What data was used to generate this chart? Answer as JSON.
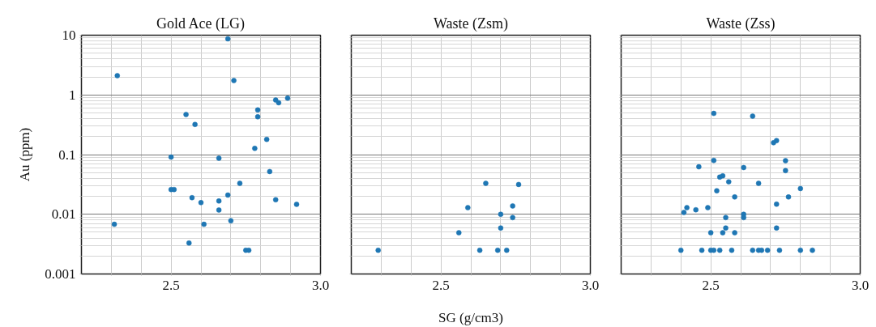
{
  "chart_data": [
    {
      "type": "scatter",
      "title": "Gold Ace (LG)",
      "ylabel": "Au (ppm)",
      "log": true,
      "grid": true,
      "marker": "circle",
      "xlim": [
        2.2,
        3.0
      ],
      "ylim": [
        0.001,
        10
      ],
      "xticks": [
        {
          "value": 2.3,
          "label": null
        },
        {
          "value": 2.4,
          "label": null
        },
        {
          "value": 2.5,
          "label": "2.5"
        },
        {
          "value": 2.6,
          "label": null
        },
        {
          "value": 2.7,
          "label": null
        },
        {
          "value": 2.8,
          "label": null
        },
        {
          "value": 2.9,
          "label": null
        },
        {
          "value": 3,
          "label": "3.0"
        }
      ],
      "yticks": [
        0.001,
        {
          "value": 0.002,
          "label": null
        },
        {
          "value": 0.003,
          "label": null
        },
        {
          "value": 0.004,
          "label": null
        },
        {
          "value": 0.005,
          "label": null
        },
        {
          "value": 0.006,
          "label": null
        },
        {
          "value": 0.007,
          "label": null
        },
        {
          "value": 0.008,
          "label": null
        },
        {
          "value": 0.009,
          "label": null
        },
        0.01,
        {
          "value": 0.02,
          "label": null
        },
        {
          "value": 0.03,
          "label": null
        },
        {
          "value": 0.04,
          "label": null
        },
        {
          "value": 0.05,
          "label": null
        },
        {
          "value": 0.06,
          "label": null
        },
        {
          "value": 0.07,
          "label": null
        },
        {
          "value": 0.08,
          "label": null
        },
        {
          "value": 0.09,
          "label": null
        },
        0.1,
        {
          "value": 0.2,
          "label": null
        },
        {
          "value": 0.3,
          "label": null
        },
        {
          "value": 0.4,
          "label": null
        },
        {
          "value": 0.5,
          "label": null
        },
        {
          "value": 0.6,
          "label": null
        },
        {
          "value": 0.7,
          "label": null
        },
        {
          "value": 0.8,
          "label": null
        },
        {
          "value": 0.9,
          "label": null
        },
        1,
        {
          "value": 2,
          "label": null
        },
        {
          "value": 3,
          "label": null
        },
        {
          "value": 4,
          "label": null
        },
        {
          "value": 5,
          "label": null
        },
        {
          "value": 6,
          "label": null
        },
        {
          "value": 7,
          "label": null
        },
        {
          "value": 8,
          "label": null
        },
        {
          "value": 9,
          "label": null
        },
        10
      ],
      "series": [
        {
          "color": "#1f77b4",
          "x": [
            2.69,
            2.32,
            2.71,
            2.85,
            2.86,
            2.89,
            2.79,
            2.79,
            2.55,
            2.58,
            2.82,
            2.78,
            2.5,
            2.66,
            2.83,
            2.73,
            2.5,
            2.51,
            2.69,
            2.57,
            2.85,
            2.66,
            2.6,
            2.92,
            2.66,
            2.31,
            2.61,
            2.7,
            2.56,
            2.75,
            2.76
          ],
          "values": [
            8.7,
            2.1,
            1.74,
            0.82,
            0.74,
            0.88,
            0.56,
            0.43,
            0.47,
            0.32,
            0.18,
            0.127,
            0.091,
            0.087,
            0.052,
            0.033,
            0.026,
            0.026,
            0.021,
            0.019,
            0.0175,
            0.0167,
            0.0157,
            0.0147,
            0.0118,
            0.0068,
            0.0068,
            0.0078,
            0.0033,
            0.0025,
            0.0025
          ]
        }
      ]
    },
    {
      "type": "scatter",
      "title": "Waste (Zsm)",
      "xlabel": "SG (g/cm3)",
      "log": true,
      "grid": true,
      "marker": "circle",
      "tick_labels": "x",
      "xlim": [
        2.2,
        3.0
      ],
      "ylim": [
        0.001,
        10
      ],
      "xticks": [
        {
          "value": 2.3,
          "label": null
        },
        {
          "value": 2.4,
          "label": null
        },
        {
          "value": 2.5,
          "label": "2.5"
        },
        {
          "value": 2.6,
          "label": null
        },
        {
          "value": 2.7,
          "label": null
        },
        {
          "value": 2.8,
          "label": null
        },
        {
          "value": 2.9,
          "label": null
        },
        {
          "value": 3,
          "label": "3.0"
        }
      ],
      "yticks": [
        0.001,
        {
          "value": 0.002,
          "label": null
        },
        {
          "value": 0.003,
          "label": null
        },
        {
          "value": 0.004,
          "label": null
        },
        {
          "value": 0.005,
          "label": null
        },
        {
          "value": 0.006,
          "label": null
        },
        {
          "value": 0.007,
          "label": null
        },
        {
          "value": 0.008,
          "label": null
        },
        {
          "value": 0.009,
          "label": null
        },
        0.01,
        {
          "value": 0.02,
          "label": null
        },
        {
          "value": 0.03,
          "label": null
        },
        {
          "value": 0.04,
          "label": null
        },
        {
          "value": 0.05,
          "label": null
        },
        {
          "value": 0.06,
          "label": null
        },
        {
          "value": 0.07,
          "label": null
        },
        {
          "value": 0.08,
          "label": null
        },
        {
          "value": 0.09,
          "label": null
        },
        0.1,
        {
          "value": 0.2,
          "label": null
        },
        {
          "value": 0.3,
          "label": null
        },
        {
          "value": 0.4,
          "label": null
        },
        {
          "value": 0.5,
          "label": null
        },
        {
          "value": 0.6,
          "label": null
        },
        {
          "value": 0.7,
          "label": null
        },
        {
          "value": 0.8,
          "label": null
        },
        {
          "value": 0.9,
          "label": null
        },
        1,
        {
          "value": 2,
          "label": null
        },
        {
          "value": 3,
          "label": null
        },
        {
          "value": 4,
          "label": null
        },
        {
          "value": 5,
          "label": null
        },
        {
          "value": 6,
          "label": null
        },
        {
          "value": 7,
          "label": null
        },
        {
          "value": 8,
          "label": null
        },
        {
          "value": 9,
          "label": null
        },
        10
      ],
      "series": [
        {
          "color": "#1f77b4",
          "x": [
            2.29,
            2.63,
            2.69,
            2.72,
            2.56,
            2.59,
            2.65,
            2.76,
            2.74,
            2.7,
            2.74,
            2.7
          ],
          "values": [
            0.0025,
            0.0025,
            0.0025,
            0.0025,
            0.0049,
            0.0129,
            0.033,
            0.0316,
            0.0138,
            0.01,
            0.0088,
            0.0059
          ]
        }
      ]
    },
    {
      "type": "scatter",
      "title": "Waste (Zss)",
      "log": true,
      "grid": true,
      "marker": "circle",
      "tick_labels": "x",
      "xlim": [
        2.2,
        3.0
      ],
      "ylim": [
        0.001,
        10
      ],
      "xticks": [
        {
          "value": 2.3,
          "label": null
        },
        {
          "value": 2.4,
          "label": null
        },
        {
          "value": 2.5,
          "label": "2.5"
        },
        {
          "value": 2.6,
          "label": null
        },
        {
          "value": 2.7,
          "label": null
        },
        {
          "value": 2.8,
          "label": null
        },
        {
          "value": 2.9,
          "label": null
        },
        {
          "value": 3,
          "label": "3.0"
        }
      ],
      "yticks": [
        0.001,
        {
          "value": 0.002,
          "label": null
        },
        {
          "value": 0.003,
          "label": null
        },
        {
          "value": 0.004,
          "label": null
        },
        {
          "value": 0.005,
          "label": null
        },
        {
          "value": 0.006,
          "label": null
        },
        {
          "value": 0.007,
          "label": null
        },
        {
          "value": 0.008,
          "label": null
        },
        {
          "value": 0.009,
          "label": null
        },
        0.01,
        {
          "value": 0.02,
          "label": null
        },
        {
          "value": 0.03,
          "label": null
        },
        {
          "value": 0.04,
          "label": null
        },
        {
          "value": 0.05,
          "label": null
        },
        {
          "value": 0.06,
          "label": null
        },
        {
          "value": 0.07,
          "label": null
        },
        {
          "value": 0.08,
          "label": null
        },
        {
          "value": 0.09,
          "label": null
        },
        0.1,
        {
          "value": 0.2,
          "label": null
        },
        {
          "value": 0.3,
          "label": null
        },
        {
          "value": 0.4,
          "label": null
        },
        {
          "value": 0.5,
          "label": null
        },
        {
          "value": 0.6,
          "label": null
        },
        {
          "value": 0.7,
          "label": null
        },
        {
          "value": 0.8,
          "label": null
        },
        {
          "value": 0.9,
          "label": null
        },
        1,
        {
          "value": 2,
          "label": null
        },
        {
          "value": 3,
          "label": null
        },
        {
          "value": 4,
          "label": null
        },
        {
          "value": 5,
          "label": null
        },
        {
          "value": 6,
          "label": null
        },
        {
          "value": 7,
          "label": null
        },
        {
          "value": 8,
          "label": null
        },
        {
          "value": 9,
          "label": null
        },
        10
      ],
      "series": [
        {
          "color": "#1f77b4",
          "x": [
            2.4,
            2.47,
            2.5,
            2.51,
            2.53,
            2.57,
            2.64,
            2.66,
            2.67,
            2.69,
            2.73,
            2.8,
            2.84,
            2.51,
            2.64,
            2.71,
            2.72,
            2.51,
            2.75,
            2.75,
            2.46,
            2.61,
            2.53,
            2.54,
            2.56,
            2.66,
            2.52,
            2.8,
            2.58,
            2.76,
            2.72,
            2.41,
            2.42,
            2.45,
            2.49,
            2.55,
            2.61,
            2.61,
            2.55,
            2.72,
            2.5,
            2.54,
            2.58
          ],
          "values": [
            0.0025,
            0.0025,
            0.0025,
            0.0025,
            0.0025,
            0.0025,
            0.0025,
            0.0025,
            0.0025,
            0.0025,
            0.0025,
            0.0025,
            0.0025,
            0.49,
            0.44,
            0.158,
            0.172,
            0.08,
            0.079,
            0.054,
            0.0625,
            0.0607,
            0.042,
            0.044,
            0.035,
            0.033,
            0.0248,
            0.027,
            0.0195,
            0.0195,
            0.0148,
            0.0107,
            0.0129,
            0.0119,
            0.0129,
            0.0088,
            0.01,
            0.0088,
            0.0059,
            0.0059,
            0.0049,
            0.0049,
            0.0049
          ]
        }
      ]
    }
  ]
}
